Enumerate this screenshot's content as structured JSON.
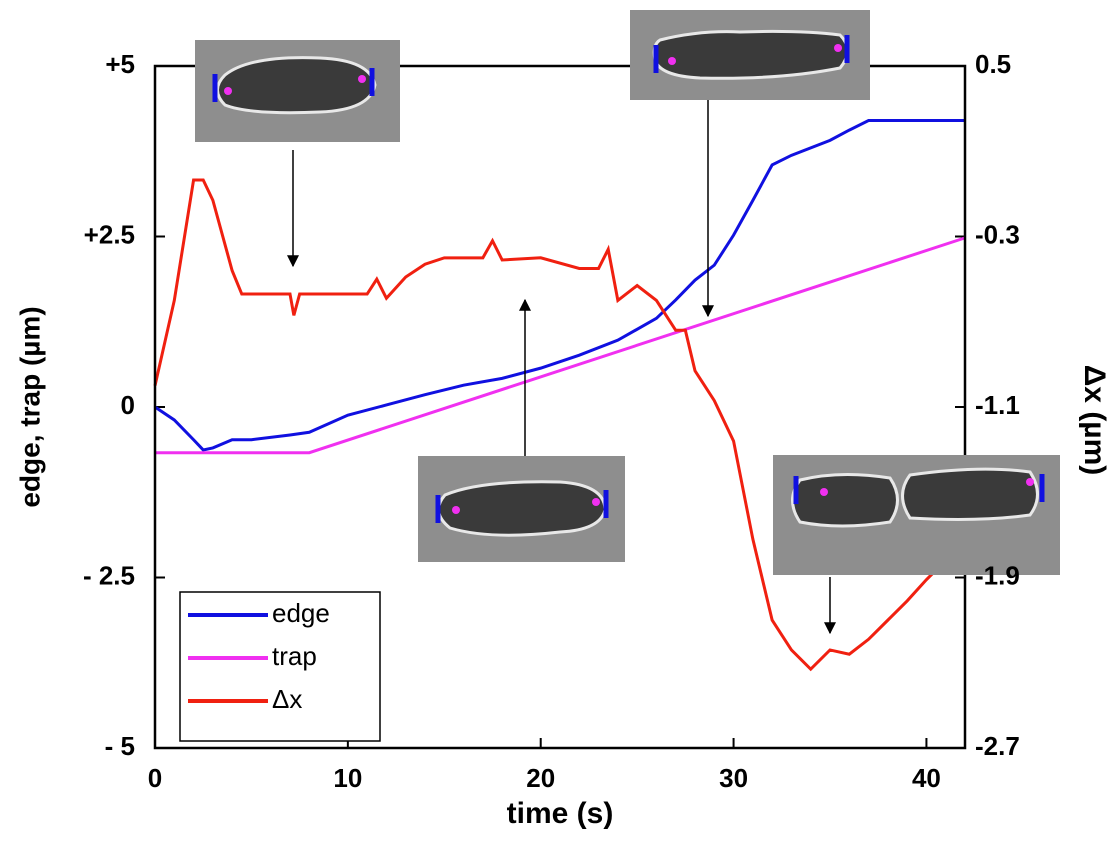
{
  "chart_data": {
    "type": "line",
    "xlabel": "time (s)",
    "ylabel": "edge, trap (µm)",
    "y2label": "Δx (µm)",
    "xlim": [
      0,
      42
    ],
    "xticks": [
      0,
      10,
      20,
      30,
      40
    ],
    "ylim": [
      -5,
      5
    ],
    "yticks": [
      {
        "value": -5,
        "label": "- 5"
      },
      {
        "value": -2.5,
        "label": "- 2.5"
      },
      0,
      {
        "value": 2.5,
        "label": "+2.5"
      },
      {
        "value": 5,
        "label": "+5"
      }
    ],
    "y2lim": [
      -2.7,
      0.5
    ],
    "y2ticks": [
      -2.7,
      -1.9,
      -1.1,
      -0.3,
      0.5
    ],
    "legend": "lower left",
    "series": [
      {
        "name": "edge",
        "color": "#1010e0",
        "x": [
          0,
          1,
          2,
          2.5,
          3,
          4,
          5,
          7,
          8,
          10,
          12,
          14,
          16,
          18,
          20,
          22,
          24,
          26,
          27,
          28,
          29,
          30,
          31,
          32,
          33,
          35,
          36,
          37,
          42
        ],
        "values": [
          0,
          -0.19,
          -0.48,
          -0.63,
          -0.6,
          -0.48,
          -0.48,
          -0.41,
          -0.37,
          -0.12,
          0.03,
          0.18,
          0.32,
          0.42,
          0.57,
          0.76,
          0.98,
          1.3,
          1.57,
          1.86,
          2.08,
          2.52,
          3.03,
          3.55,
          3.69,
          3.91,
          4.06,
          4.2,
          4.2
        ]
      },
      {
        "name": "trap",
        "color": "#f030f0",
        "x": [
          0,
          8,
          42
        ],
        "values": [
          -0.67,
          -0.67,
          2.48
        ]
      },
      {
        "name": "Δx",
        "color": "#f02010",
        "axis": "y2",
        "x": [
          0,
          1,
          2,
          2.5,
          3,
          4,
          4.5,
          7,
          7.2,
          7.5,
          11,
          11.5,
          12,
          13,
          14,
          15,
          17,
          17.5,
          18,
          20,
          22,
          23,
          23.5,
          24,
          25,
          26,
          27,
          27.5,
          28,
          29,
          30,
          31,
          32,
          33,
          34,
          35,
          36,
          37,
          38,
          39,
          40,
          41,
          42
        ],
        "values": [
          -1.0,
          -0.6,
          -0.035,
          -0.035,
          -0.13,
          -0.46,
          -0.57,
          -0.57,
          -0.67,
          -0.57,
          -0.57,
          -0.5,
          -0.59,
          -0.49,
          -0.43,
          -0.4,
          -0.4,
          -0.32,
          -0.41,
          -0.4,
          -0.45,
          -0.45,
          -0.36,
          -0.6,
          -0.53,
          -0.6,
          -0.74,
          -0.74,
          -0.93,
          -1.07,
          -1.26,
          -1.72,
          -2.1,
          -2.24,
          -2.33,
          -2.24,
          -2.26,
          -2.19,
          -2.1,
          -2.01,
          -1.91,
          -1.82,
          -1.72
        ]
      }
    ]
  }
}
